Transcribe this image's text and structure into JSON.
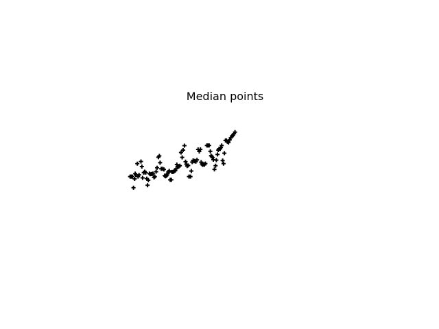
{
  "chart_data": {
    "type": "scatter",
    "title": "Median points",
    "xlabel": "",
    "ylabel": "",
    "axes_visible": false,
    "grid": false,
    "marker": "+",
    "marker_color": "#000000",
    "xlim": [
      0,
      1
    ],
    "ylim": [
      0,
      1
    ],
    "series": [
      {
        "points": [
          [
            0.006,
            0.383
          ],
          [
            0.01,
            0.383
          ],
          [
            0.014,
            0.383
          ],
          [
            0.018,
            0.383
          ],
          [
            0.024,
            0.268
          ],
          [
            0.03,
            0.359
          ],
          [
            0.033,
            0.413
          ],
          [
            0.036,
            0.4
          ],
          [
            0.044,
            0.516
          ],
          [
            0.048,
            0.383
          ],
          [
            0.053,
            0.401
          ],
          [
            0.063,
            0.538
          ],
          [
            0.068,
            0.486
          ],
          [
            0.072,
            0.37
          ],
          [
            0.078,
            0.423
          ],
          [
            0.083,
            0.433
          ],
          [
            0.088,
            0.423
          ],
          [
            0.094,
            0.362
          ],
          [
            0.098,
            0.294
          ],
          [
            0.102,
            0.346
          ],
          [
            0.108,
            0.414
          ],
          [
            0.113,
            0.406
          ],
          [
            0.118,
            0.409
          ],
          [
            0.123,
            0.41
          ],
          [
            0.126,
            0.414
          ],
          [
            0.132,
            0.375
          ],
          [
            0.136,
            0.383
          ],
          [
            0.143,
            0.433
          ],
          [
            0.148,
            0.473
          ],
          [
            0.155,
            0.582
          ],
          [
            0.16,
            0.595
          ],
          [
            0.164,
            0.525
          ],
          [
            0.17,
            0.463
          ],
          [
            0.178,
            0.463
          ],
          [
            0.184,
            0.456
          ],
          [
            0.188,
            0.393
          ],
          [
            0.192,
            0.386
          ],
          [
            0.196,
            0.39
          ],
          [
            0.2,
            0.398
          ],
          [
            0.204,
            0.414
          ],
          [
            0.207,
            0.43
          ],
          [
            0.212,
            0.442
          ],
          [
            0.217,
            0.349
          ],
          [
            0.223,
            0.349
          ],
          [
            0.226,
            0.43
          ],
          [
            0.232,
            0.43
          ],
          [
            0.236,
            0.435
          ],
          [
            0.24,
            0.442
          ],
          [
            0.244,
            0.445
          ],
          [
            0.248,
            0.463
          ],
          [
            0.252,
            0.506
          ],
          [
            0.256,
            0.486
          ],
          [
            0.262,
            0.485
          ],
          [
            0.268,
            0.495
          ],
          [
            0.274,
            0.63
          ],
          [
            0.28,
            0.58
          ],
          [
            0.285,
            0.655
          ],
          [
            0.292,
            0.701
          ],
          [
            0.298,
            0.536
          ],
          [
            0.302,
            0.51
          ],
          [
            0.306,
            0.491
          ],
          [
            0.312,
            0.497
          ],
          [
            0.316,
            0.383
          ],
          [
            0.324,
            0.383
          ],
          [
            0.328,
            0.44
          ],
          [
            0.333,
            0.532
          ],
          [
            0.338,
            0.549
          ],
          [
            0.343,
            0.54
          ],
          [
            0.347,
            0.545
          ],
          [
            0.352,
            0.536
          ],
          [
            0.358,
            0.554
          ],
          [
            0.364,
            0.662
          ],
          [
            0.37,
            0.641
          ],
          [
            0.376,
            0.663
          ],
          [
            0.38,
            0.531
          ],
          [
            0.384,
            0.512
          ],
          [
            0.388,
            0.503
          ],
          [
            0.393,
            0.51
          ],
          [
            0.397,
            0.505
          ],
          [
            0.402,
            0.517
          ],
          [
            0.41,
            0.703
          ],
          [
            0.416,
            0.703
          ],
          [
            0.422,
            0.703
          ],
          [
            0.428,
            0.642
          ],
          [
            0.432,
            0.597
          ],
          [
            0.436,
            0.589
          ],
          [
            0.44,
            0.578
          ],
          [
            0.444,
            0.556
          ],
          [
            0.45,
            0.457
          ],
          [
            0.456,
            0.495
          ],
          [
            0.46,
            0.552
          ],
          [
            0.466,
            0.61
          ],
          [
            0.47,
            0.655
          ],
          [
            0.474,
            0.668
          ],
          [
            0.48,
            0.667
          ],
          [
            0.484,
            0.682
          ],
          [
            0.488,
            0.702
          ],
          [
            0.493,
            0.548
          ],
          [
            0.498,
            0.516
          ],
          [
            0.502,
            0.623
          ],
          [
            0.508,
            0.754
          ],
          [
            0.513,
            0.754
          ],
          [
            0.518,
            0.74
          ],
          [
            0.524,
            0.733
          ],
          [
            0.53,
            0.76
          ],
          [
            0.536,
            0.781
          ],
          [
            0.542,
            0.8
          ],
          [
            0.548,
            0.806
          ],
          [
            0.553,
            0.823
          ],
          [
            0.558,
            0.84
          ]
        ]
      }
    ]
  }
}
